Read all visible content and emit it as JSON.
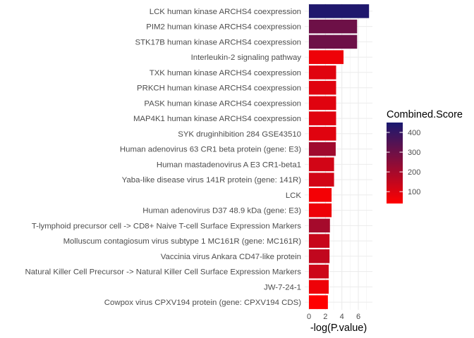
{
  "chart_data": {
    "type": "bar",
    "orientation": "horizontal",
    "xlabel": "-log(P.value)",
    "ylabel": "",
    "xlim": [
      0,
      7.4
    ],
    "x_ticks": [
      0,
      2,
      4,
      6
    ],
    "grid": true,
    "legend": {
      "title": "Combined.Score",
      "placement": "right",
      "range": [
        40,
        450
      ],
      "ticks": [
        100,
        200,
        300,
        400
      ],
      "color_low": "#ff0000",
      "color_high": "#191970"
    },
    "categories": [
      "LCK human kinase ARCHS4 coexpression",
      "PIM2 human kinase ARCHS4 coexpression",
      "STK17B human kinase ARCHS4 coexpression",
      "Interleukin-2 signaling pathway",
      "TXK human kinase ARCHS4 coexpression",
      "PRKCH human kinase ARCHS4 coexpression",
      "PASK human kinase ARCHS4 coexpression",
      "MAP4K1 human kinase ARCHS4 coexpression",
      "SYK druginhibition 284 GSE43510",
      "Human adenovirus 63 CR1 beta protein (gene: E3)",
      "Human mastadenovirus A E3 CR1-beta1",
      "Yaba-like disease virus 141R protein (gene: 141R)",
      "LCK",
      "Human adenovirus D37 48.9 kDa (gene: E3)",
      "T-lymphoid precursor cell -> CD8+ Naive T-cell Surface Expression Markers",
      "Molluscum contagiosum virus subtype 1 MC161R (gene: MC161R)",
      "Vaccinia virus Ankara CD47-like protein",
      "Natural Killer Cell Precursor -> Natural Killer Cell Surface Expression Markers",
      "JW-7-24-1",
      "Cowpox virus CPXV194 protein (gene: CPXV194 CDS)"
    ],
    "values": [
      7.3,
      5.85,
      5.85,
      4.2,
      3.3,
      3.3,
      3.3,
      3.3,
      3.3,
      3.25,
      3.05,
      3.05,
      2.75,
      2.75,
      2.55,
      2.5,
      2.5,
      2.4,
      2.4,
      2.3
    ],
    "combined_score": [
      440,
      300,
      300,
      70,
      95,
      95,
      95,
      95,
      95,
      210,
      120,
      120,
      60,
      70,
      200,
      140,
      150,
      130,
      70,
      40
    ]
  }
}
